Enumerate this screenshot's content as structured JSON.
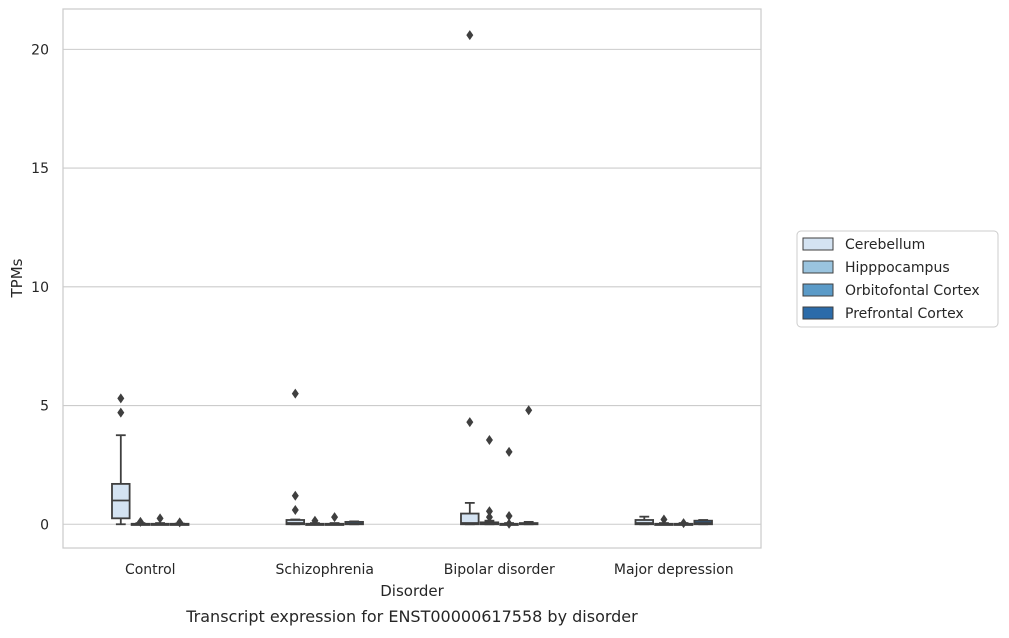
{
  "chart_data": {
    "type": "box",
    "title": "",
    "caption": "Transcript expression for ENST00000617558 by disorder",
    "xlabel": "Disorder",
    "ylabel": "TPMs",
    "ylim": [
      -1,
      21.7
    ],
    "yticks": [
      0,
      5,
      10,
      15,
      20
    ],
    "grid": "horizontal",
    "legend_position": "right",
    "categories": [
      "Control",
      "Schizophrenia",
      "Bipolar disorder",
      "Major depression"
    ],
    "series": [
      {
        "name": "Cerebellum",
        "color": "#d4e3f2",
        "boxes": [
          {
            "whislo": 0,
            "q1": 0.25,
            "med": 1.0,
            "q3": 1.7,
            "whishi": 3.75,
            "fliers": [
              4.7,
              5.3
            ]
          },
          {
            "whislo": 0,
            "q1": 0,
            "med": 0.05,
            "q3": 0.18,
            "whishi": 0.2,
            "fliers": [
              0.6,
              1.2,
              5.5
            ]
          },
          {
            "whislo": 0,
            "q1": 0,
            "med": 0.05,
            "q3": 0.45,
            "whishi": 0.9,
            "fliers": [
              4.3,
              20.6
            ]
          },
          {
            "whislo": 0,
            "q1": 0,
            "med": 0.05,
            "q3": 0.18,
            "whishi": 0.32,
            "fliers": []
          }
        ]
      },
      {
        "name": "Hipppocampus",
        "color": "#9ac4df",
        "boxes": [
          {
            "whislo": 0,
            "q1": 0,
            "med": 0,
            "q3": 0.02,
            "whishi": 0.05,
            "fliers": [
              0.1
            ]
          },
          {
            "whislo": 0,
            "q1": 0,
            "med": 0,
            "q3": 0.02,
            "whishi": 0.05,
            "fliers": [
              0.15
            ]
          },
          {
            "whislo": 0,
            "q1": 0,
            "med": 0.02,
            "q3": 0.08,
            "whishi": 0.15,
            "fliers": [
              0.3,
              0.55,
              3.55
            ]
          },
          {
            "whislo": 0,
            "q1": 0,
            "med": 0,
            "q3": 0.02,
            "whishi": 0.05,
            "fliers": [
              0.2
            ]
          }
        ]
      },
      {
        "name": "Orbitofontal Cortex",
        "color": "#5b9bc8",
        "boxes": [
          {
            "whislo": 0,
            "q1": 0,
            "med": 0,
            "q3": 0.02,
            "whishi": 0.05,
            "fliers": [
              0.25
            ]
          },
          {
            "whislo": 0,
            "q1": 0,
            "med": 0,
            "q3": 0.02,
            "whishi": 0.05,
            "fliers": [
              0.3
            ]
          },
          {
            "whislo": 0,
            "q1": 0,
            "med": 0,
            "q3": 0.02,
            "whishi": 0.05,
            "fliers": [
              0.02,
              0.35,
              3.05
            ]
          },
          {
            "whislo": 0,
            "q1": 0,
            "med": 0,
            "q3": 0.02,
            "whishi": 0.05,
            "fliers": [
              0.05
            ]
          }
        ]
      },
      {
        "name": "Prefrontal Cortex",
        "color": "#2b6ba9",
        "boxes": [
          {
            "whislo": 0,
            "q1": 0,
            "med": 0,
            "q3": 0.02,
            "whishi": 0.03,
            "fliers": [
              0.08
            ]
          },
          {
            "whislo": 0,
            "q1": 0,
            "med": 0.02,
            "q3": 0.1,
            "whishi": 0.12,
            "fliers": []
          },
          {
            "whislo": 0,
            "q1": 0,
            "med": 0.02,
            "q3": 0.05,
            "whishi": 0.1,
            "fliers": [
              4.8
            ]
          },
          {
            "whislo": 0,
            "q1": 0,
            "med": 0.05,
            "q3": 0.15,
            "whishi": 0.18,
            "fliers": []
          }
        ]
      }
    ]
  }
}
